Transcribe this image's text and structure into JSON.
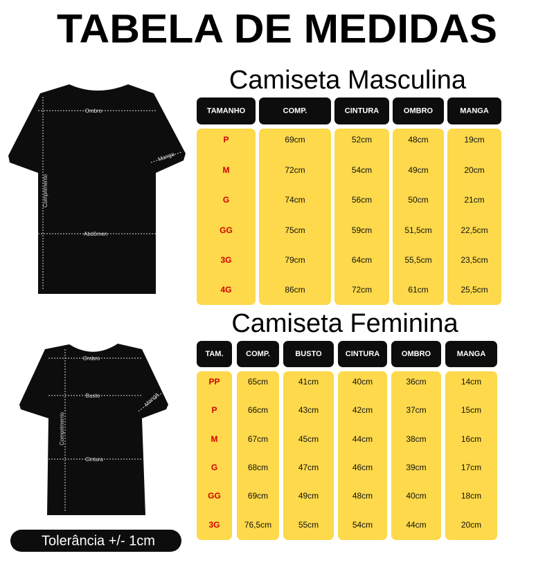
{
  "title": "TABELA DE MEDIDAS",
  "male": {
    "title": "Camiseta Masculina",
    "headers": [
      "TAMANHO",
      "COMP.",
      "CINTURA",
      "OMBRO",
      "MANGA"
    ],
    "rows": [
      [
        "P",
        "69cm",
        "52cm",
        "48cm",
        "19cm"
      ],
      [
        "M",
        "72cm",
        "54cm",
        "49cm",
        "20cm"
      ],
      [
        "G",
        "74cm",
        "56cm",
        "50cm",
        "21cm"
      ],
      [
        "GG",
        "75cm",
        "59cm",
        "51,5cm",
        "22,5cm"
      ],
      [
        "3G",
        "79cm",
        "64cm",
        "55,5cm",
        "23,5cm"
      ],
      [
        "4G",
        "86cm",
        "72cm",
        "61cm",
        "25,5cm"
      ]
    ],
    "shirt_labels": [
      "Ombro",
      "Manga",
      "Comprimento",
      "Abdômen"
    ]
  },
  "female": {
    "title": "Camiseta Feminina",
    "headers": [
      "TAM.",
      "COMP.",
      "BUSTO",
      "CINTURA",
      "OMBRO",
      "MANGA"
    ],
    "rows": [
      [
        "PP",
        "65cm",
        "41cm",
        "40cm",
        "36cm",
        "14cm"
      ],
      [
        "P",
        "66cm",
        "43cm",
        "42cm",
        "37cm",
        "15cm"
      ],
      [
        "M",
        "67cm",
        "45cm",
        "44cm",
        "38cm",
        "16cm"
      ],
      [
        "G",
        "68cm",
        "47cm",
        "46cm",
        "39cm",
        "17cm"
      ],
      [
        "GG",
        "69cm",
        "49cm",
        "48cm",
        "40cm",
        "18cm"
      ],
      [
        "3G",
        "76,5cm",
        "55cm",
        "54cm",
        "44cm",
        "20cm"
      ]
    ],
    "shirt_labels": [
      "Ombro",
      "Busto",
      "Manga",
      "Comprimento",
      "Cintura"
    ]
  },
  "footer": "Tolerância +/- 1cm"
}
